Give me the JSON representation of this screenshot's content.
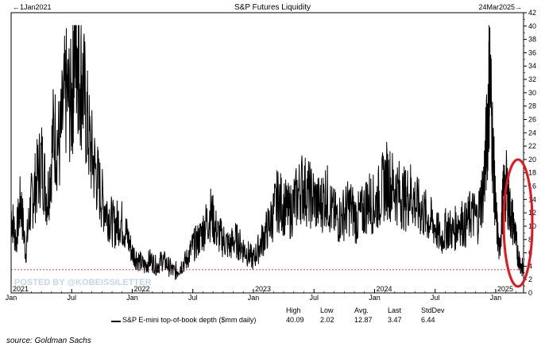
{
  "chart_data": {
    "type": "line",
    "title": "S&P Futures Liquidity",
    "range_start_label": "1Jan2021",
    "range_end_label": "24Mar2025",
    "ylim": [
      0,
      42
    ],
    "yticks": [
      0,
      2,
      4,
      6,
      8,
      10,
      12,
      14,
      16,
      18,
      20,
      22,
      24,
      26,
      28,
      30,
      32,
      34,
      36,
      38,
      40,
      42
    ],
    "xticks": [
      {
        "label": "Jan",
        "year": "2021",
        "t": 2021.0
      },
      {
        "label": "Jul",
        "year": "",
        "t": 2021.5
      },
      {
        "label": "Jan",
        "year": "2022",
        "t": 2022.0
      },
      {
        "label": "Jul",
        "year": "",
        "t": 2022.5
      },
      {
        "label": "Jan",
        "year": "2023",
        "t": 2023.0
      },
      {
        "label": "Jul",
        "year": "",
        "t": 2023.5
      },
      {
        "label": "Jan",
        "year": "2024",
        "t": 2024.0
      },
      {
        "label": "Jul",
        "year": "",
        "t": 2024.5
      },
      {
        "label": "Jan",
        "year": "2025",
        "t": 2025.0
      }
    ],
    "xlim": [
      2021.0,
      2025.23
    ],
    "reference_line": 3.47,
    "grid": false,
    "series": [
      {
        "name": "S&P E-mini top-of-book depth ($mm daily)",
        "color": "#000000",
        "anchor_points": [
          [
            2021.0,
            12
          ],
          [
            2021.04,
            8
          ],
          [
            2021.08,
            14
          ],
          [
            2021.12,
            6
          ],
          [
            2021.16,
            13
          ],
          [
            2021.2,
            16
          ],
          [
            2021.25,
            20
          ],
          [
            2021.3,
            14
          ],
          [
            2021.35,
            24
          ],
          [
            2021.4,
            22
          ],
          [
            2021.45,
            30
          ],
          [
            2021.5,
            28
          ],
          [
            2021.53,
            40
          ],
          [
            2021.56,
            34
          ],
          [
            2021.6,
            30
          ],
          [
            2021.65,
            22
          ],
          [
            2021.7,
            18
          ],
          [
            2021.75,
            14
          ],
          [
            2021.8,
            12
          ],
          [
            2021.85,
            10
          ],
          [
            2021.9,
            11
          ],
          [
            2021.95,
            9
          ],
          [
            2022.0,
            6
          ],
          [
            2022.05,
            5
          ],
          [
            2022.1,
            4
          ],
          [
            2022.15,
            5
          ],
          [
            2022.2,
            4
          ],
          [
            2022.25,
            5
          ],
          [
            2022.3,
            4
          ],
          [
            2022.35,
            3
          ],
          [
            2022.4,
            4
          ],
          [
            2022.45,
            5
          ],
          [
            2022.5,
            7
          ],
          [
            2022.55,
            8
          ],
          [
            2022.6,
            10
          ],
          [
            2022.65,
            12
          ],
          [
            2022.7,
            9
          ],
          [
            2022.75,
            8
          ],
          [
            2022.8,
            7
          ],
          [
            2022.85,
            8
          ],
          [
            2022.9,
            7
          ],
          [
            2022.95,
            6
          ],
          [
            2023.0,
            5
          ],
          [
            2023.05,
            7
          ],
          [
            2023.1,
            9
          ],
          [
            2023.15,
            11
          ],
          [
            2023.2,
            14
          ],
          [
            2023.25,
            13
          ],
          [
            2023.3,
            12
          ],
          [
            2023.35,
            14
          ],
          [
            2023.4,
            16
          ],
          [
            2023.45,
            15
          ],
          [
            2023.5,
            14
          ],
          [
            2023.55,
            13
          ],
          [
            2023.6,
            15
          ],
          [
            2023.65,
            12
          ],
          [
            2023.7,
            11
          ],
          [
            2023.75,
            12
          ],
          [
            2023.8,
            13
          ],
          [
            2023.85,
            11
          ],
          [
            2023.9,
            12
          ],
          [
            2023.95,
            14
          ],
          [
            2024.0,
            13
          ],
          [
            2024.05,
            15
          ],
          [
            2024.1,
            17
          ],
          [
            2024.15,
            16
          ],
          [
            2024.2,
            15
          ],
          [
            2024.25,
            14
          ],
          [
            2024.3,
            15
          ],
          [
            2024.35,
            13
          ],
          [
            2024.4,
            12
          ],
          [
            2024.45,
            11
          ],
          [
            2024.5,
            10
          ],
          [
            2024.55,
            8
          ],
          [
            2024.6,
            10
          ],
          [
            2024.65,
            9
          ],
          [
            2024.7,
            11
          ],
          [
            2024.75,
            10
          ],
          [
            2024.8,
            12
          ],
          [
            2024.85,
            11
          ],
          [
            2024.9,
            16
          ],
          [
            2024.93,
            24
          ],
          [
            2024.95,
            34
          ],
          [
            2024.98,
            20
          ],
          [
            2025.0,
            12
          ],
          [
            2025.03,
            6
          ],
          [
            2025.06,
            14
          ],
          [
            2025.09,
            16
          ],
          [
            2025.12,
            12
          ],
          [
            2025.15,
            10
          ],
          [
            2025.18,
            6
          ],
          [
            2025.21,
            4
          ],
          [
            2025.23,
            3.47
          ]
        ]
      }
    ]
  },
  "legend": {
    "label": "S&P E-mini top-of-book depth ($mm daily)",
    "stats_headers": [
      "High",
      "Low",
      "Avg.",
      "Last",
      "StdDev"
    ],
    "stats_values": [
      "40.09",
      "2.02",
      "12.87",
      "3.47",
      "6.44"
    ]
  },
  "watermark": "POSTED BY @KOBEISSILETTER",
  "source": "source: Goldman Sachs",
  "highlight_color": "#e8141c"
}
